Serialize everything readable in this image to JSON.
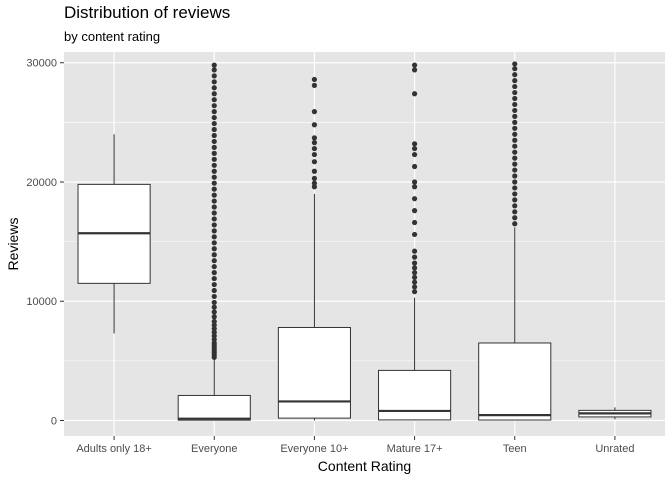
{
  "chart_data": {
    "type": "boxplot",
    "title": "Distribution of reviews",
    "subtitle": "by content rating",
    "xlabel": "Content Rating",
    "ylabel": "Reviews",
    "ylim": [
      -1300,
      30900
    ],
    "yticks": [
      0,
      10000,
      20000,
      30000
    ],
    "ytick_labels": [
      "0",
      "10000",
      "20000",
      "30000"
    ],
    "grid": true,
    "categories": [
      "Adults only 18+",
      "Everyone",
      "Everyone 10+",
      "Mature 17+",
      "Teen",
      "Unrated"
    ],
    "boxes": [
      {
        "category": "Adults only 18+",
        "whisker_low": 7300,
        "q1": 11500,
        "median": 15700,
        "q3": 19800,
        "whisker_high": 24000,
        "outliers": []
      },
      {
        "category": "Everyone",
        "whisker_low": 0,
        "q1": 30,
        "median": 150,
        "q3": 2100,
        "whisker_high": 5200,
        "outliers": [
          5300,
          5500,
          5700,
          5900,
          6100,
          6300,
          6500,
          6800,
          7100,
          7400,
          7700,
          8000,
          8300,
          8700,
          9100,
          9500,
          9900,
          10400,
          10900,
          11400,
          11900,
          12400,
          12900,
          13400,
          13900,
          14400,
          14900,
          15400,
          15900,
          16400,
          16900,
          17400,
          17900,
          18400,
          18900,
          19400,
          19900,
          20400,
          20900,
          21400,
          21900,
          22400,
          22900,
          23400,
          23900,
          24400,
          24900,
          25400,
          25900,
          26400,
          26900,
          27400,
          27900,
          28400,
          28900,
          29400,
          29800
        ]
      },
      {
        "category": "Everyone 10+",
        "whisker_low": 0,
        "q1": 200,
        "median": 1600,
        "q3": 7800,
        "whisker_high": 19000,
        "outliers": [
          19600,
          19900,
          20300,
          20900,
          21700,
          22300,
          22800,
          23300,
          23700,
          24800,
          25900,
          28100,
          28600
        ]
      },
      {
        "category": "Mature 17+",
        "whisker_low": 0,
        "q1": 50,
        "median": 800,
        "q3": 4200,
        "whisker_high": 10300,
        "outliers": [
          10800,
          11200,
          11600,
          12000,
          12400,
          12800,
          13200,
          13700,
          14200,
          15600,
          16600,
          17600,
          18600,
          19600,
          20000,
          21300,
          22300,
          22800,
          23200,
          27400,
          29400,
          29800
        ]
      },
      {
        "category": "Teen",
        "whisker_low": 0,
        "q1": 40,
        "median": 450,
        "q3": 6500,
        "whisker_high": 16200,
        "outliers": [
          16500,
          17000,
          17500,
          18000,
          18500,
          19000,
          19500,
          20000,
          20500,
          21000,
          21500,
          22000,
          22500,
          23000,
          23500,
          24000,
          24500,
          25000,
          25500,
          26000,
          26500,
          27000,
          27500,
          28000,
          28500,
          29000,
          29500,
          29900
        ]
      },
      {
        "category": "Unrated",
        "whisker_low": 100,
        "q1": 300,
        "median": 600,
        "q3": 850,
        "whisker_high": 1100,
        "outliers": []
      }
    ],
    "colors": {
      "panel_background": "#e5e5e5",
      "grid": "#ffffff",
      "box_fill": "#ffffff",
      "box_stroke": "#333333",
      "outlier": "#333333"
    }
  }
}
